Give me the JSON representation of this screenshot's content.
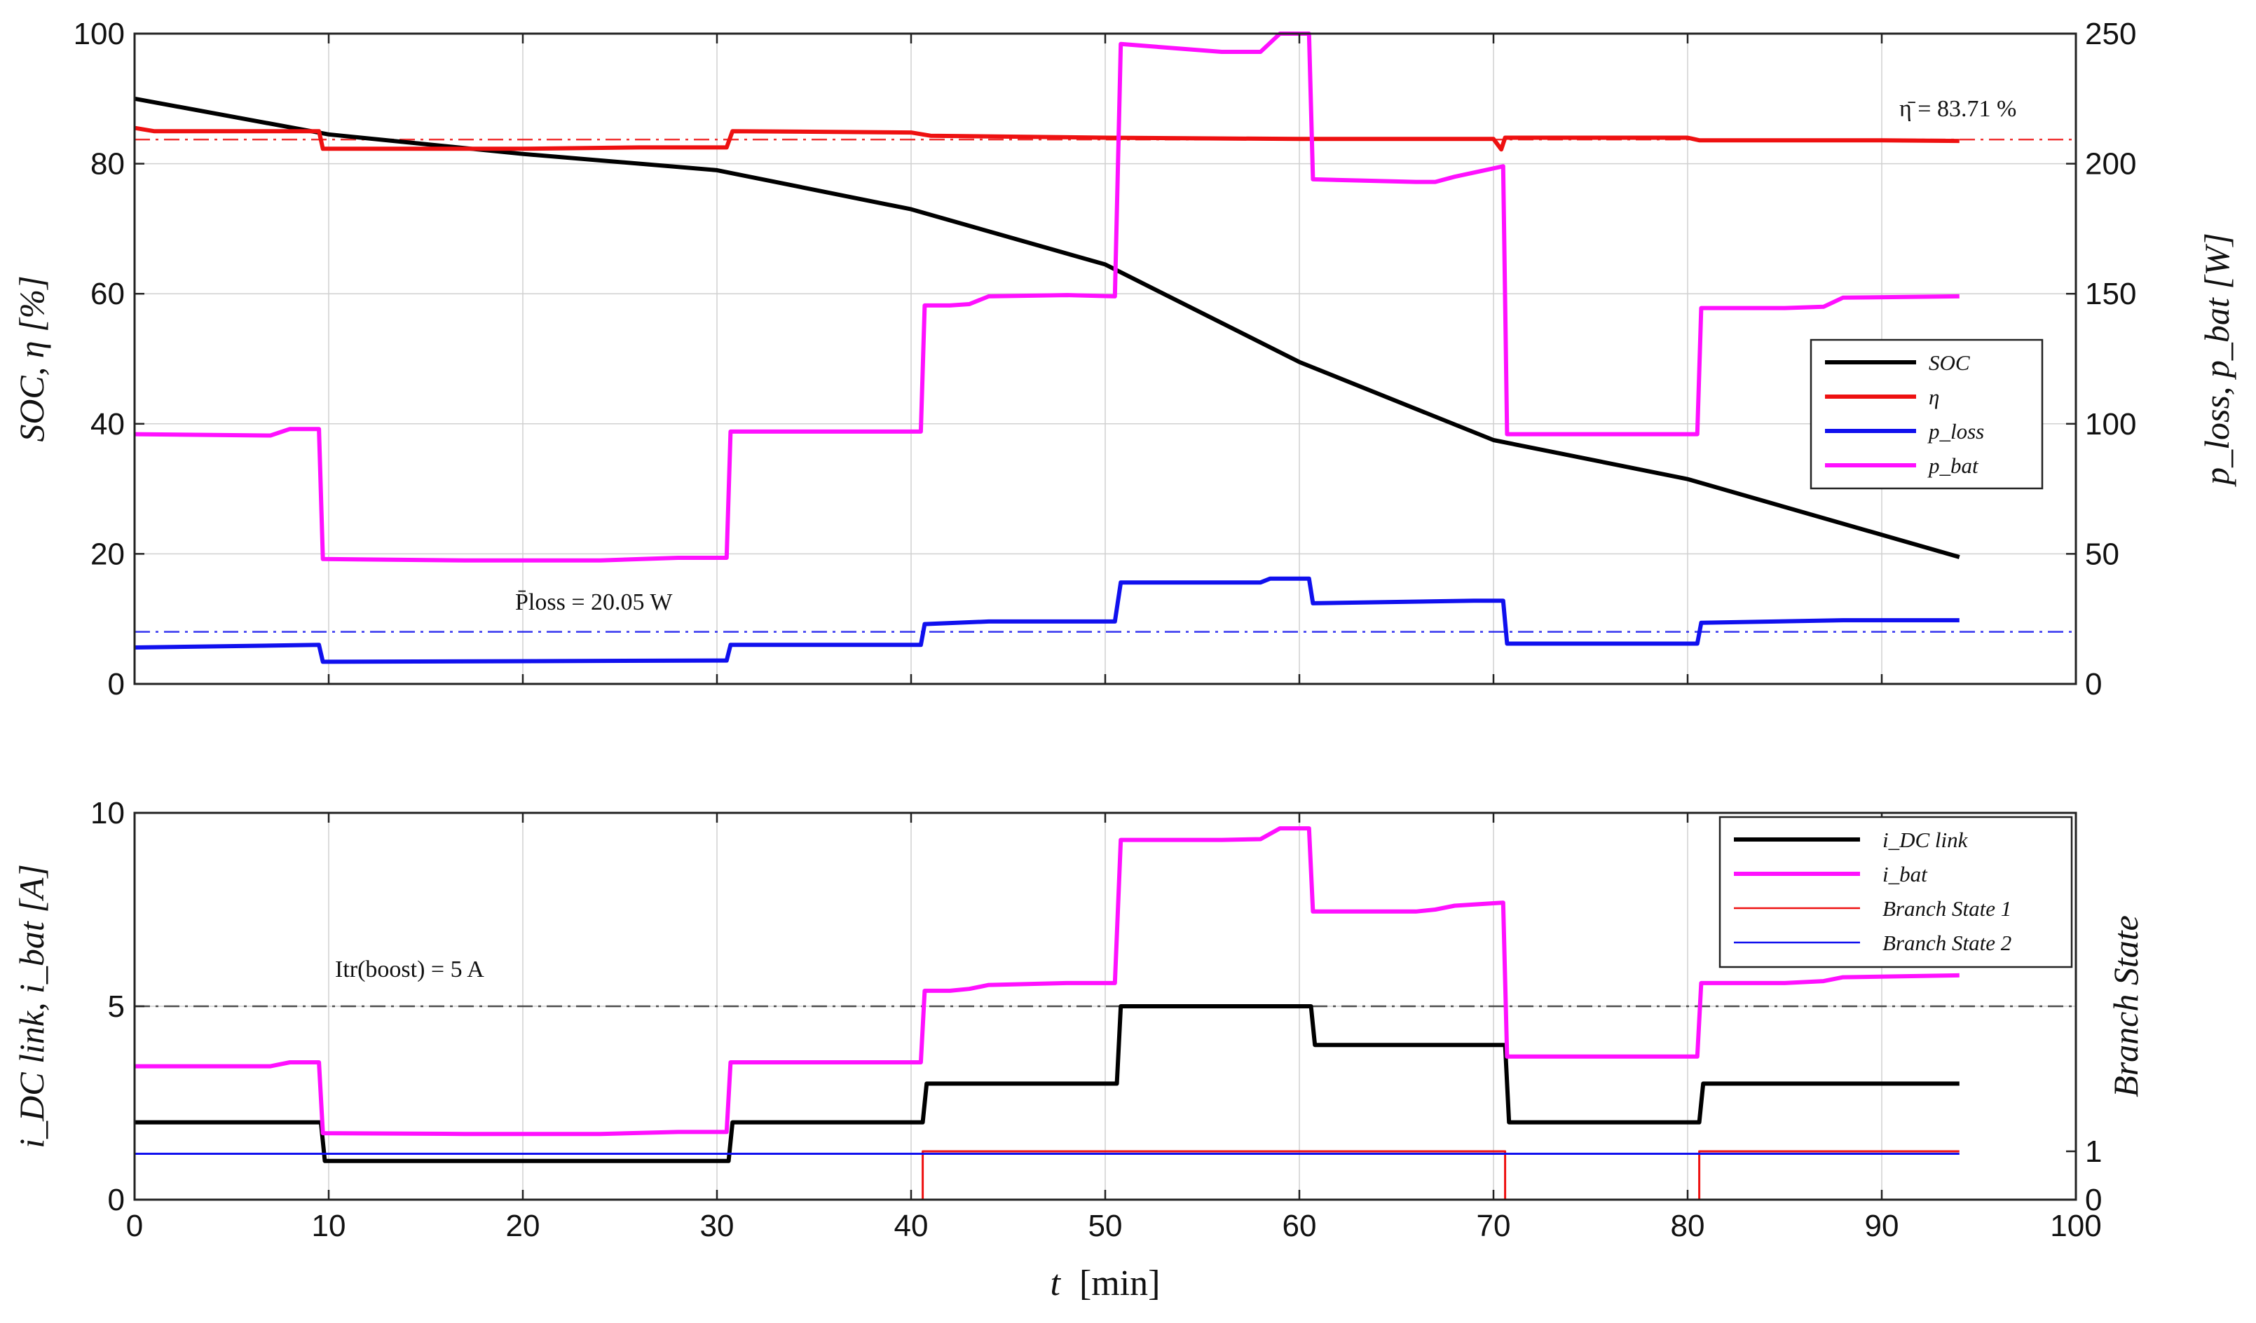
{
  "chart_data": [
    {
      "type": "line",
      "x": {
        "label_var": "t",
        "label_unit": "[min]",
        "lim": [
          0,
          100
        ],
        "ticks": [
          0,
          10,
          20,
          30,
          40,
          50,
          60,
          70,
          80,
          90,
          100
        ]
      },
      "y_left": {
        "label": "SOC, η [%]",
        "lim": [
          0,
          100
        ],
        "ticks": [
          0,
          20,
          40,
          60,
          80,
          100
        ]
      },
      "y_right": {
        "label": "p_loss, p_bat [W]",
        "lim": [
          0,
          250
        ],
        "ticks": [
          0,
          50,
          100,
          150,
          200,
          250
        ]
      },
      "grid": true,
      "legend_position": "right",
      "series": [
        {
          "name": "SOC",
          "axis": "left",
          "color": "#000000",
          "x": [
            0,
            10,
            20,
            30,
            40,
            50,
            60,
            70,
            80,
            94
          ],
          "y": [
            90,
            84.5,
            81.5,
            79,
            73,
            64.5,
            49.5,
            37.5,
            31.5,
            19.5
          ]
        },
        {
          "name": "η",
          "axis": "left",
          "color": "#ee1111",
          "x": [
            0,
            1,
            9.5,
            9.7,
            20,
            26,
            30.5,
            30.8,
            40,
            41,
            50,
            60,
            70,
            70.4,
            70.6,
            71,
            80,
            80.6,
            90,
            94
          ],
          "y": [
            85.5,
            85,
            85,
            82.3,
            82.3,
            82.5,
            82.5,
            85,
            84.8,
            84.3,
            84,
            83.8,
            83.8,
            82.2,
            84,
            84,
            84,
            83.6,
            83.6,
            83.5
          ]
        },
        {
          "name": "p_loss",
          "axis": "right",
          "color": "#1010ee",
          "x": [
            0,
            9.5,
            9.7,
            30.5,
            30.7,
            40.5,
            40.7,
            44,
            50.5,
            50.8,
            58,
            58.5,
            60.5,
            60.7,
            69,
            70.5,
            70.7,
            80.5,
            80.7,
            88,
            94
          ],
          "y": [
            14,
            15,
            8.5,
            9,
            15,
            15,
            23,
            24,
            24,
            39,
            39,
            40.5,
            40.5,
            31,
            32,
            32,
            15.5,
            15.5,
            23.5,
            24.5,
            24.5
          ]
        },
        {
          "name": "p_bat",
          "axis": "right",
          "color": "#ff10ff",
          "x": [
            0,
            7,
            8,
            9.5,
            9.7,
            17,
            24,
            28,
            30.5,
            30.7,
            40.5,
            40.7,
            42,
            43,
            44,
            48,
            50.5,
            50.8,
            56,
            58,
            59,
            60.5,
            60.7,
            66,
            67,
            68,
            70.5,
            70.7,
            80.5,
            80.7,
            85,
            87,
            88,
            94
          ],
          "y": [
            96,
            95.5,
            98,
            98,
            48,
            47.5,
            47.5,
            48.5,
            48.5,
            97,
            97,
            145.5,
            145.5,
            146,
            149,
            149.5,
            149,
            246,
            243,
            243,
            250,
            250,
            194,
            193,
            193,
            195,
            199,
            96,
            96,
            144.5,
            144.5,
            145,
            148.5,
            149
          ]
        }
      ],
      "annotations": [
        {
          "text": "η̄ = 83.71 %",
          "value": 83.71,
          "axis": "left",
          "color": "#ee1111"
        },
        {
          "text": "P̄loss = 20.05 W",
          "value": 20.05,
          "axis": "right",
          "color": "#1010ee"
        }
      ]
    },
    {
      "type": "line",
      "x": {
        "label_var": "t",
        "label_unit": "[min]",
        "lim": [
          0,
          100
        ],
        "ticks": [
          0,
          10,
          20,
          30,
          40,
          50,
          60,
          70,
          80,
          90,
          100
        ]
      },
      "y_left": {
        "label": "i_DC link, i_bat [A]",
        "lim": [
          0,
          10
        ],
        "ticks": [
          0,
          5,
          10
        ]
      },
      "y_right": {
        "label": "Branch State",
        "lim": [
          0,
          8
        ],
        "ticks": [
          0,
          1
        ]
      },
      "grid": true,
      "legend_position": "top-right",
      "series": [
        {
          "name": "i_DC link",
          "axis": "left",
          "color": "#000000",
          "x": [
            0,
            9.6,
            9.8,
            30.6,
            30.8,
            40.6,
            40.8,
            50.6,
            50.8,
            60.6,
            60.8,
            70.6,
            70.8,
            80.6,
            80.8,
            94
          ],
          "y": [
            2,
            2,
            1,
            1,
            2,
            2,
            3,
            3,
            5,
            5,
            4,
            4,
            2,
            2,
            3,
            3
          ]
        },
        {
          "name": "i_bat",
          "axis": "left",
          "color": "#ff10ff",
          "x": [
            0,
            7,
            8,
            9.5,
            9.7,
            17,
            24,
            28,
            30.5,
            30.7,
            40.5,
            40.7,
            42,
            43,
            44,
            48,
            50.5,
            50.8,
            56,
            58,
            59,
            60.5,
            60.7,
            66,
            67,
            68,
            70.5,
            70.7,
            80.5,
            80.7,
            85,
            87,
            88,
            94
          ],
          "y": [
            3.45,
            3.45,
            3.55,
            3.55,
            1.72,
            1.7,
            1.7,
            1.75,
            1.75,
            3.55,
            3.55,
            5.4,
            5.4,
            5.45,
            5.55,
            5.6,
            5.6,
            9.3,
            9.3,
            9.32,
            9.6,
            9.6,
            7.45,
            7.45,
            7.5,
            7.6,
            7.68,
            3.7,
            3.7,
            5.6,
            5.6,
            5.65,
            5.75,
            5.8
          ]
        },
        {
          "name": "Branch State 1",
          "axis": "right",
          "color": "#ee1111",
          "x": [
            0,
            40.6,
            40.6,
            70.6,
            70.6,
            80.6,
            80.6,
            94
          ],
          "y": [
            0,
            0,
            1,
            1,
            0,
            0,
            1,
            1
          ]
        },
        {
          "name": "Branch State 2",
          "axis": "right",
          "color": "#1010ee",
          "x": [
            0,
            94
          ],
          "y": [
            0.95,
            0.95
          ]
        }
      ],
      "annotations": [
        {
          "text": "Itr(boost) = 5 A",
          "value": 5,
          "axis": "left",
          "color": "#333333"
        }
      ]
    }
  ],
  "labels": {
    "ax1_left_ylabel": "SOC, η [%]",
    "ax1_right_ylabel": "p_loss, p_bat [W]",
    "ax2_left_ylabel": "i_DC link, i_bat [A]",
    "ax2_right_ylabel": "Branch State",
    "xlabel_var": "t",
    "xlabel_unit": "[min]",
    "eta_note": "η̄ = 83.71 %",
    "ploss_note": "P̄loss = 20.05 W",
    "itr_note": "Itr(boost) = 5 A"
  }
}
